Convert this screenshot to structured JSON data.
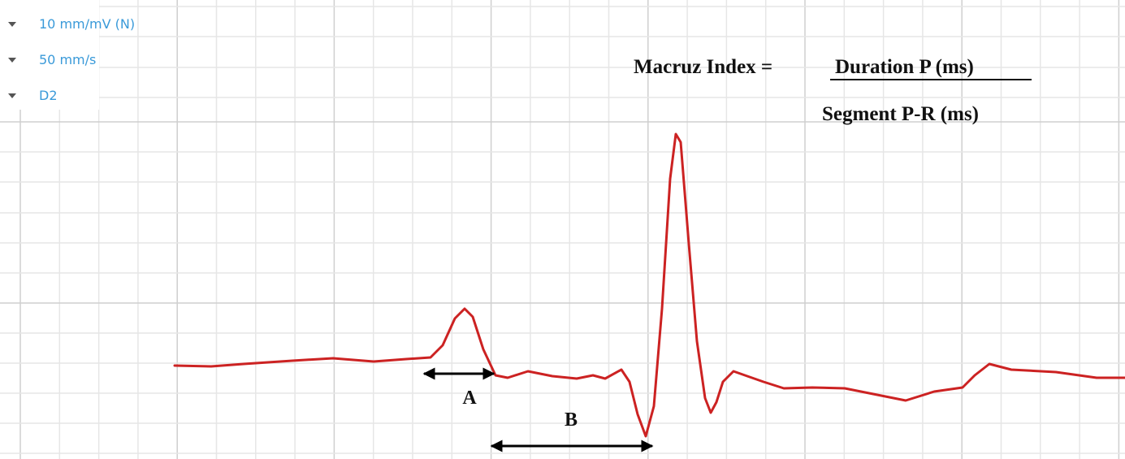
{
  "settings": [
    "10 mm/mV (N)",
    "50 mm/s",
    "D2"
  ],
  "formula": {
    "label": "Macruz Index =",
    "numerator": "Duration P (ms)",
    "denominator": "Segment P-R (ms)"
  },
  "intervals": {
    "a": "A",
    "b": "B"
  }
}
